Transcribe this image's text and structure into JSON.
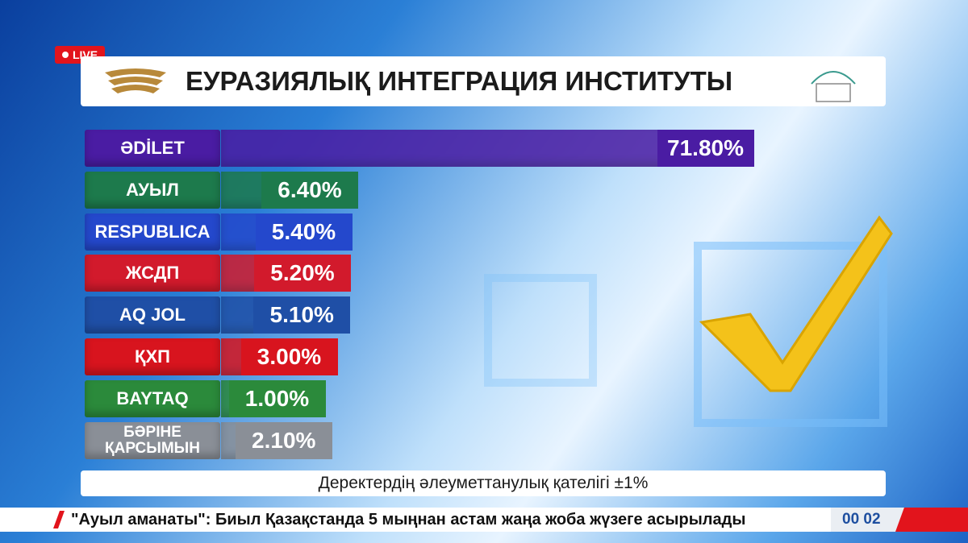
{
  "live": "LIVE",
  "header": {
    "title": "ЕУРАЗИЯЛЫҚ ИНТЕГРАЦИЯ ИНСТИТУТЫ"
  },
  "chart_data": {
    "type": "bar",
    "categories": [
      "ӘDİLET",
      "АУЫЛ",
      "RESPUBLICA",
      "ЖСДП",
      "AQ JOL",
      "ҚХП",
      "BAYTAQ",
      "БӘРІНЕ ҚАРСЫМЫН"
    ],
    "values": [
      71.8,
      6.4,
      5.4,
      5.2,
      5.1,
      3.0,
      1.0,
      2.1
    ],
    "value_labels": [
      "71.80%",
      "6.40%",
      "5.40%",
      "5.20%",
      "5.10%",
      "3.00%",
      "1.00%",
      "2.10%"
    ],
    "colors": [
      "#4a1ca3",
      "#1d7a4c",
      "#2448cc",
      "#d21a2c",
      "#1f4fa6",
      "#d8141e",
      "#2b8a3b",
      "#8a8f97"
    ]
  },
  "footnote": "Деректердің әлеуметтанулық қателігі ±1%",
  "ticker": {
    "text": "\"Ауыл аманаты\": Биыл Қазақстанда 5 мыңнан астам жаңа жоба жүзеге асырылады",
    "clock": "00 02"
  }
}
